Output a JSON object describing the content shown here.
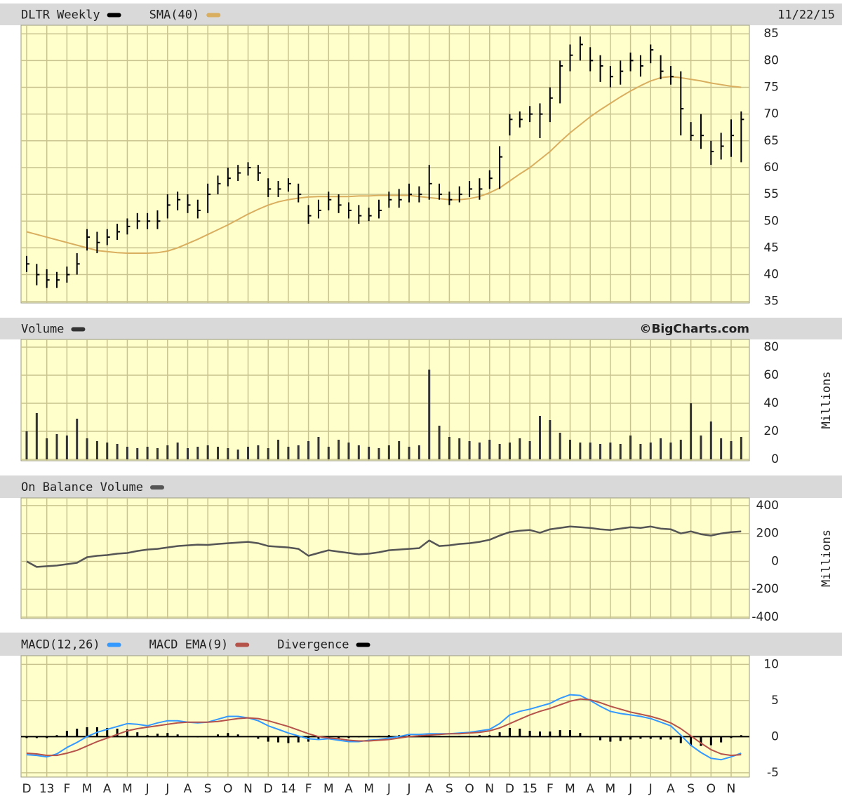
{
  "chart_data": [
    {
      "type": "ohlc",
      "title": "DLTR Weekly",
      "date": "11/22/15",
      "color": "#000000",
      "high": [
        43.5,
        42,
        41,
        40.5,
        41.5,
        44,
        48.5,
        48,
        48.5,
        49.5,
        50.5,
        51.5,
        51.5,
        52,
        55,
        55.5,
        55,
        54,
        57,
        58.5,
        60,
        60.5,
        61,
        60.5,
        58,
        57.5,
        58,
        57,
        53,
        54,
        55.5,
        55,
        53.5,
        53,
        52.5,
        54,
        55.5,
        56,
        57,
        56.5,
        60.5,
        57,
        55.5,
        56.5,
        57.5,
        58,
        59.5,
        64,
        70,
        70.5,
        71.5,
        72,
        75,
        80,
        83,
        84.5,
        82.5,
        81,
        79,
        80,
        81.5,
        81,
        83,
        81,
        79,
        78,
        68.5,
        70,
        65,
        66.5,
        69,
        70.5
      ],
      "low": [
        40.5,
        38,
        37.5,
        37.5,
        38.5,
        40,
        44.5,
        44,
        45.5,
        46.5,
        47.5,
        48.5,
        48.5,
        48.5,
        50.5,
        52,
        51.5,
        50.5,
        51.5,
        55,
        56.5,
        57.5,
        58.5,
        57.5,
        54.5,
        54.5,
        55.5,
        53.5,
        49.5,
        50.5,
        52,
        51.5,
        50.5,
        49.5,
        50,
        50.5,
        52.5,
        52.5,
        53.5,
        53.5,
        54,
        54,
        53,
        53.5,
        54.5,
        54,
        56,
        56,
        66,
        67.5,
        68.5,
        65.5,
        68.5,
        72,
        78,
        80,
        78,
        76,
        75,
        75.5,
        78,
        77,
        79.5,
        76.5,
        75.5,
        66,
        65,
        63.5,
        60.5,
        61.5,
        62,
        61
      ],
      "close": [
        42,
        40,
        39,
        39,
        40,
        42,
        47,
        46,
        47,
        48,
        49,
        50,
        50,
        50,
        53,
        54,
        53,
        52,
        55,
        57,
        58,
        59,
        60,
        59,
        56,
        56,
        57,
        55,
        51,
        52,
        54,
        53,
        52,
        51,
        51,
        52,
        54,
        54,
        55,
        55,
        57,
        55,
        54,
        55,
        56,
        56,
        58,
        62,
        69,
        69,
        70,
        70,
        73,
        79,
        81,
        83,
        80,
        79,
        77,
        78,
        80,
        79,
        82,
        78,
        77,
        71,
        66,
        66,
        63,
        64,
        66,
        69
      ],
      "series": [
        {
          "name": "SMA(40)",
          "color": "#d9ae5f",
          "values": [
            48,
            47.5,
            47,
            46.5,
            46,
            45.5,
            45,
            44.5,
            44.3,
            44.1,
            44,
            44,
            44,
            44.1,
            44.4,
            45,
            45.8,
            46.6,
            47.5,
            48.4,
            49.3,
            50.3,
            51.3,
            52.2,
            53,
            53.6,
            54,
            54.3,
            54.5,
            54.6,
            54.6,
            54.6,
            54.6,
            54.7,
            54.7,
            54.8,
            54.8,
            54.8,
            54.8,
            54.6,
            54.4,
            54.2,
            54,
            54,
            54.2,
            54.6,
            55.3,
            56.2,
            57.5,
            58.8,
            60,
            61.5,
            63,
            64.8,
            66.5,
            68,
            69.5,
            70.8,
            72,
            73.2,
            74.3,
            75.3,
            76.2,
            76.8,
            77,
            76.8,
            76.5,
            76.2,
            75.8,
            75.5,
            75.2,
            75
          ]
        }
      ],
      "ylim": [
        34.7,
        86.6
      ],
      "yticks": [
        35,
        40,
        45,
        50,
        55,
        60,
        65,
        70,
        75,
        80,
        85
      ],
      "grid": true
    },
    {
      "type": "bar",
      "title": "Volume",
      "credit": "©BigCharts.com",
      "ylabel": "Millions",
      "color": "#333333",
      "values": [
        20,
        33,
        15,
        18,
        17,
        29,
        15,
        13,
        12,
        11,
        9,
        8,
        9,
        8,
        10,
        12,
        8,
        9,
        10,
        9,
        8,
        7,
        9,
        10,
        8,
        14,
        9,
        10,
        13,
        16,
        9,
        14,
        12,
        10,
        9,
        8,
        10,
        13,
        9,
        10,
        64,
        24,
        16,
        15,
        13,
        12,
        14,
        11,
        12,
        15,
        13,
        31,
        28,
        19,
        14,
        12,
        12,
        11,
        12,
        11,
        17,
        11,
        12,
        15,
        12,
        14,
        40,
        17,
        27,
        15,
        13,
        16
      ],
      "ylim": [
        -1,
        85.5
      ],
      "yticks": [
        0,
        20,
        40,
        60,
        80
      ],
      "grid": true
    },
    {
      "type": "line",
      "title": "On Balance Volume",
      "ylabel": "Millions",
      "color": "#555555",
      "values": [
        0,
        -40,
        -35,
        -30,
        -20,
        -10,
        30,
        40,
        45,
        55,
        60,
        75,
        85,
        90,
        100,
        110,
        115,
        120,
        118,
        125,
        130,
        135,
        140,
        130,
        110,
        105,
        100,
        90,
        40,
        60,
        80,
        70,
        60,
        50,
        55,
        65,
        80,
        85,
        90,
        95,
        150,
        110,
        115,
        125,
        130,
        140,
        155,
        185,
        210,
        220,
        225,
        205,
        230,
        240,
        250,
        245,
        240,
        230,
        225,
        235,
        245,
        240,
        250,
        235,
        230,
        200,
        215,
        195,
        185,
        200,
        210,
        215
      ],
      "ylim": [
        -410,
        455
      ],
      "yticks": [
        -400,
        -200,
        0,
        200,
        400
      ],
      "grid": true
    },
    {
      "type": "macd",
      "categories": [
        "D",
        null,
        "13",
        null,
        "F",
        null,
        "M",
        null,
        "A",
        null,
        "M",
        null,
        "J",
        null,
        "J",
        null,
        "A",
        null,
        "S",
        null,
        "O",
        null,
        "N",
        null,
        "D",
        null,
        "14",
        null,
        "F",
        null,
        "M",
        null,
        "A",
        null,
        "M",
        null,
        "J",
        null,
        "J",
        null,
        "A",
        null,
        "S",
        null,
        "O",
        null,
        "N",
        null,
        "D",
        null,
        "15",
        null,
        "F",
        null,
        "M",
        null,
        "A",
        null,
        "M",
        null,
        "J",
        null,
        "J",
        null,
        "A",
        null,
        "S",
        null,
        "O",
        null,
        "N",
        null
      ],
      "series": [
        {
          "name": "MACD(12,26)",
          "color": "#3399ff",
          "values": [
            -2.5,
            -2.6,
            -2.8,
            -2.4,
            -1.5,
            -0.8,
            0,
            0.6,
            1.0,
            1.4,
            1.8,
            1.7,
            1.5,
            1.9,
            2.2,
            2.2,
            2.0,
            1.9,
            2.0,
            2.4,
            2.8,
            2.8,
            2.6,
            2.2,
            1.5,
            1.0,
            0.5,
            0.1,
            -0.3,
            -0.4,
            -0.3,
            -0.5,
            -0.7,
            -0.7,
            -0.5,
            -0.4,
            -0.2,
            0.0,
            0.3,
            0.3,
            0.4,
            0.4,
            0.4,
            0.5,
            0.6,
            0.8,
            1.0,
            1.8,
            3.0,
            3.5,
            3.8,
            4.2,
            4.6,
            5.3,
            5.8,
            5.7,
            5.0,
            4.2,
            3.5,
            3.2,
            3.0,
            2.8,
            2.5,
            2.0,
            1.5,
            0.2,
            -1.2,
            -2.2,
            -3.0,
            -3.2,
            -2.8,
            -2.3
          ]
        },
        {
          "name": "MACD EMA(9)",
          "color": "#b5524a",
          "values": [
            -2.3,
            -2.4,
            -2.6,
            -2.6,
            -2.3,
            -1.9,
            -1.3,
            -0.7,
            -0.2,
            0.3,
            0.8,
            1.1,
            1.3,
            1.5,
            1.7,
            1.9,
            2.0,
            2.0,
            2.0,
            2.1,
            2.3,
            2.5,
            2.6,
            2.5,
            2.2,
            1.8,
            1.4,
            0.9,
            0.4,
            0.0,
            -0.2,
            -0.3,
            -0.5,
            -0.6,
            -0.6,
            -0.5,
            -0.4,
            -0.2,
            0.0,
            0.1,
            0.2,
            0.3,
            0.4,
            0.4,
            0.5,
            0.6,
            0.8,
            1.2,
            1.8,
            2.4,
            3.0,
            3.5,
            3.9,
            4.4,
            4.9,
            5.2,
            5.1,
            4.7,
            4.2,
            3.8,
            3.4,
            3.1,
            2.8,
            2.4,
            1.9,
            1.1,
            0.1,
            -0.9,
            -1.8,
            -2.4,
            -2.6,
            -2.5
          ]
        },
        {
          "name": "Divergence",
          "color": "#000000",
          "values": [
            -0.2,
            -0.2,
            -0.2,
            0.2,
            0.8,
            1.1,
            1.3,
            1.3,
            1.2,
            1.1,
            1.0,
            0.6,
            0.2,
            0.4,
            0.5,
            0.3,
            0,
            -0.1,
            0,
            0.3,
            0.5,
            0.3,
            0,
            -0.3,
            -0.7,
            -0.8,
            -0.9,
            -0.8,
            -0.7,
            -0.4,
            -0.1,
            -0.2,
            -0.2,
            -0.1,
            0.1,
            0.1,
            0.2,
            0.2,
            0.3,
            0.2,
            0.2,
            0.1,
            0,
            0.1,
            0.1,
            0.2,
            0.2,
            0.6,
            1.2,
            1.1,
            0.8,
            0.7,
            0.7,
            0.9,
            0.9,
            0.5,
            -0.1,
            -0.5,
            -0.7,
            -0.6,
            -0.4,
            -0.3,
            -0.3,
            -0.4,
            -0.4,
            -0.9,
            -1.3,
            -1.3,
            -1.2,
            -0.8,
            -0.2,
            0.2
          ]
        }
      ],
      "ylim": [
        -5.6,
        11.2
      ],
      "yticks": [
        -5,
        0,
        5,
        10
      ],
      "grid": true
    }
  ]
}
